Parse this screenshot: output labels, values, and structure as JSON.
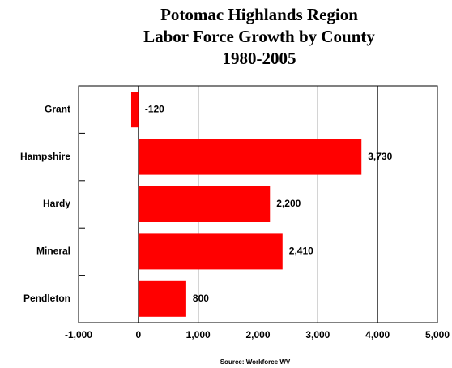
{
  "chart_data": {
    "type": "barh",
    "title": [
      "Potomac Highlands Region",
      "Labor Force Growth by County",
      "1980-2005"
    ],
    "source": "Source: Workforce WV",
    "categories": [
      "Grant",
      "Hampshire",
      "Hardy",
      "Mineral",
      "Pendleton"
    ],
    "values": [
      -120,
      3730,
      2200,
      2410,
      800
    ],
    "value_labels": [
      "-120",
      "3,730",
      "2,200",
      "2,410",
      "800"
    ],
    "color": "#ff0000",
    "xlim": [
      -1000,
      5000
    ],
    "xticks": [
      {
        "value": -1000,
        "label": "-1,000"
      },
      0,
      {
        "value": 1000,
        "label": "1,000"
      },
      {
        "value": 2000,
        "label": "2,000"
      },
      {
        "value": 3000,
        "label": "3,000"
      },
      {
        "value": 4000,
        "label": "4,000"
      },
      {
        "value": 5000,
        "label": "5,000"
      }
    ],
    "grid": true
  }
}
